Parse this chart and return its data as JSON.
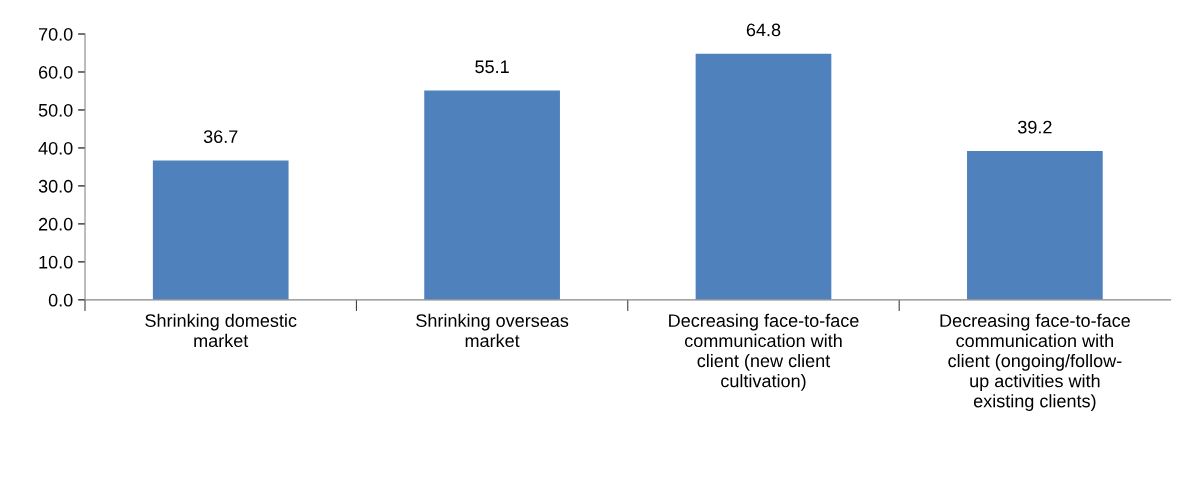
{
  "chart_data": {
    "type": "bar",
    "categories": [
      "Shrinking domestic\nmarket",
      "Shrinking overseas\nmarket",
      "Decreasing face-to-face\ncommunication with\nclient (new client\ncultivation)",
      "Decreasing face-to-face\ncommunication with\nclient (ongoing/follow-\nup activities with\nexisting clients)"
    ],
    "values": [
      36.7,
      55.1,
      64.8,
      39.2
    ],
    "color": "#4f81bd",
    "ylim": [
      0,
      70
    ],
    "yticks": [
      {
        "value": 0,
        "label": "0.0"
      },
      {
        "value": 10,
        "label": "10.0"
      },
      {
        "value": 20,
        "label": "20.0"
      },
      {
        "value": 30,
        "label": "30.0"
      },
      {
        "value": 40,
        "label": "40.0"
      },
      {
        "value": 50,
        "label": "50.0"
      },
      {
        "value": 60,
        "label": "60.0"
      },
      {
        "value": 70,
        "label": "70.0"
      }
    ],
    "data_labels": true,
    "grid": false
  }
}
